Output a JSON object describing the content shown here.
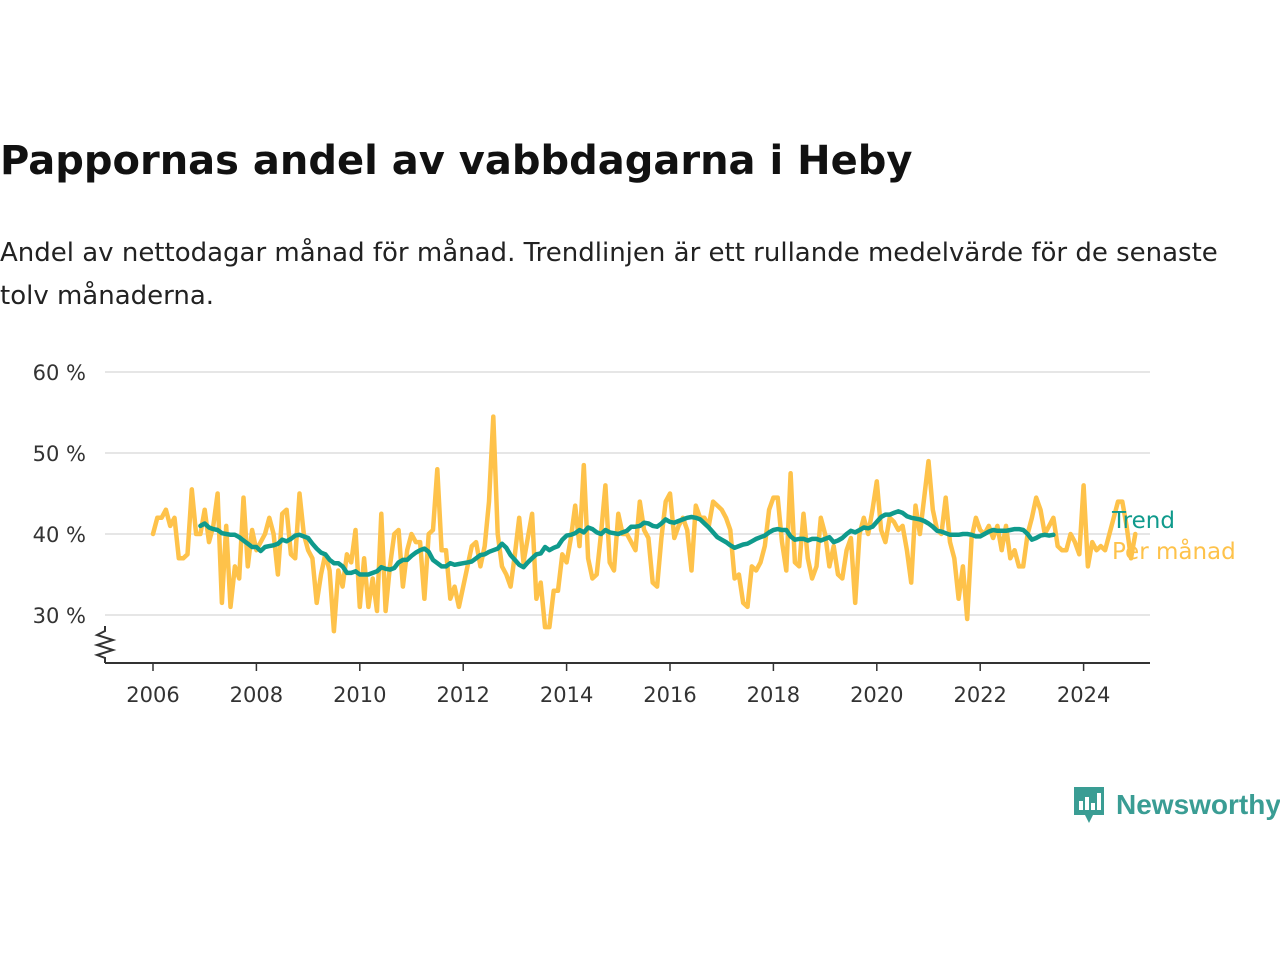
{
  "title": "Pappornas andel av vabbdagarna i Heby",
  "subtitle": "Andel av nettodagar månad för månad. Trendlinjen är ett rullande medelvärde för de senaste tolv månaderna.",
  "brand": "Newsworthy",
  "colors": {
    "trend": "#0f9a8c",
    "monthly": "#fec24a",
    "grid": "#dddddd",
    "axis": "#333333"
  },
  "chart_data": {
    "type": "line",
    "title": "Pappornas andel av vabbdagarna i Heby",
    "xlabel": "",
    "ylabel": "",
    "x_range": [
      2006,
      2024.4
    ],
    "ylim": [
      24,
      60
    ],
    "y_ticks": [
      30,
      40,
      50,
      60
    ],
    "y_tick_labels": [
      "30 %",
      "40 %",
      "50 %",
      "60 %"
    ],
    "x_ticks": [
      2006,
      2008,
      2010,
      2012,
      2014,
      2016,
      2018,
      2020,
      2022,
      2024
    ],
    "x_tick_labels": [
      "2006",
      "2008",
      "2010",
      "2012",
      "2014",
      "2016",
      "2018",
      "2020",
      "2022",
      "2024"
    ],
    "axis_break": true,
    "grid": "horizontal",
    "legend": "direct-labels-right",
    "series": [
      {
        "name": "Per månad",
        "start": 2006.0,
        "step": 0.08333,
        "values": [
          40,
          42,
          42,
          43,
          41,
          42,
          37,
          37,
          37.5,
          45.5,
          40,
          40,
          43,
          39,
          41,
          45,
          31.5,
          41,
          31,
          36,
          34.5,
          44.5,
          36,
          40.5,
          38,
          39,
          40,
          42,
          40,
          35,
          42.5,
          43,
          37.5,
          37,
          45,
          40,
          38,
          37,
          31.5,
          35,
          37.5,
          35.5,
          28,
          35.5,
          33.5,
          37.5,
          36.5,
          40.5,
          31,
          37,
          31,
          34.5,
          30.5,
          42.5,
          30.5,
          36,
          40,
          40.5,
          33.5,
          38,
          40,
          39,
          39,
          32,
          40,
          40.5,
          48,
          38,
          38,
          32,
          33.5,
          31,
          33.5,
          36,
          38.5,
          39,
          36,
          38.5,
          44,
          54.5,
          40,
          36,
          35,
          33.5,
          37.5,
          42,
          36.5,
          39.5,
          42.5,
          32,
          34,
          28.5,
          28.5,
          33,
          33,
          37.5,
          36.5,
          39.5,
          43.5,
          38.5,
          48.5,
          37,
          34.5,
          35,
          40,
          46,
          36.5,
          35.5,
          42.5,
          40,
          40,
          39,
          38,
          44,
          40.5,
          39.5,
          34,
          33.5,
          39.5,
          44,
          45,
          39.5,
          41,
          42,
          40.5,
          35.5,
          43.5,
          42,
          42,
          41,
          44,
          43.5,
          43,
          42,
          40.5,
          34.5,
          35,
          31.5,
          31,
          36,
          35.5,
          36.5,
          38.5,
          43,
          44.5,
          44.5,
          39,
          35.5,
          47.5,
          36.5,
          36,
          42.5,
          37,
          34.5,
          36,
          42,
          40,
          36,
          38.5,
          35,
          34.5,
          38,
          39.5,
          31.5,
          40,
          42,
          40,
          43,
          46.5,
          40.5,
          39,
          42,
          41.5,
          40.5,
          41,
          38,
          34,
          43.5,
          40,
          44.5,
          49,
          43,
          40.5,
          40,
          44.5,
          39,
          37,
          32,
          36,
          29.5,
          39.5,
          42,
          40.5,
          40,
          41,
          39.5,
          41,
          38,
          41,
          37,
          38,
          36,
          36,
          40,
          42,
          44.5,
          43,
          40,
          41,
          42,
          38.5,
          38,
          38,
          40,
          39,
          37.5,
          46,
          36,
          39,
          38,
          38.5,
          38,
          40,
          42,
          44,
          44,
          41,
          37,
          40
        ]
      },
      {
        "name": "Trend",
        "start": 2006.917,
        "step": 0.08333,
        "values": [
          41,
          41.3,
          40.8,
          40.6,
          40.5,
          40.1,
          40,
          39.9,
          39.9,
          39.6,
          39.2,
          38.8,
          38.4,
          38.4,
          37.9,
          38.4,
          38.5,
          38.6,
          38.8,
          39.3,
          39.1,
          39.4,
          39.8,
          39.9,
          39.7,
          39.5,
          38.8,
          38.2,
          37.7,
          37.5,
          36.8,
          36.4,
          36.4,
          36,
          35.2,
          35.2,
          35.4,
          35,
          35,
          35,
          35.2,
          35.4,
          35.9,
          35.7,
          35.6,
          35.8,
          36.5,
          36.8,
          36.8,
          37.3,
          37.7,
          38,
          38.2,
          37.8,
          36.8,
          36.4,
          36,
          36,
          36.4,
          36.2,
          36.3,
          36.4,
          36.5,
          36.6,
          37,
          37.4,
          37.5,
          37.8,
          38,
          38.2,
          38.8,
          38.3,
          37.4,
          36.8,
          36.2,
          35.9,
          36.5,
          37,
          37.5,
          37.6,
          38.4,
          38,
          38.3,
          38.5,
          39.3,
          39.8,
          39.9,
          40.1,
          40.5,
          40.2,
          40.8,
          40.6,
          40.2,
          40,
          40.5,
          40.2,
          40.1,
          40,
          40.2,
          40.4,
          40.9,
          40.9,
          41,
          41.4,
          41.3,
          41,
          40.9,
          41.3,
          41.8,
          41.5,
          41.4,
          41.6,
          41.8,
          42,
          42.1,
          42,
          41.8,
          41.3,
          40.8,
          40.2,
          39.6,
          39.3,
          39,
          38.6,
          38.3,
          38.5,
          38.7,
          38.8,
          39.1,
          39.4,
          39.6,
          39.8,
          40.2,
          40.5,
          40.6,
          40.5,
          40.5,
          39.7,
          39.3,
          39.4,
          39.4,
          39.2,
          39.4,
          39.4,
          39.2,
          39.4,
          39.6,
          39,
          39.2,
          39.5,
          40,
          40.4,
          40.2,
          40.5,
          40.8,
          40.7,
          40.9,
          41.5,
          42.1,
          42.4,
          42.4,
          42.6,
          42.8,
          42.6,
          42.2,
          42,
          41.9,
          41.8,
          41.6,
          41.3,
          40.9,
          40.4,
          40.3,
          40.1,
          39.9,
          39.9,
          39.9,
          40,
          40,
          39.9,
          39.7,
          39.7,
          40,
          40.3,
          40.5,
          40.4,
          40.4,
          40.4,
          40.5,
          40.6,
          40.6,
          40.5,
          40,
          39.3,
          39.5,
          39.8,
          39.9,
          39.8,
          39.9
        ]
      }
    ]
  }
}
